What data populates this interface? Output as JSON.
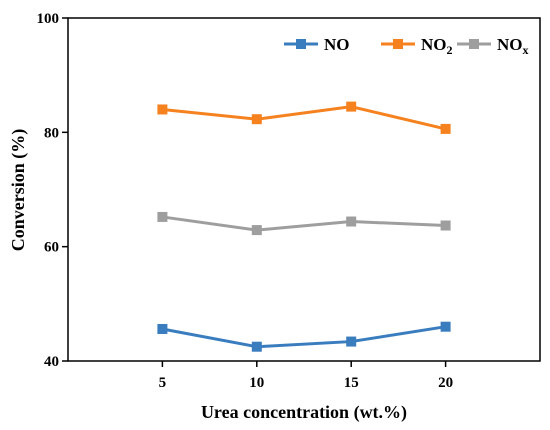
{
  "chart_data": {
    "type": "line",
    "xlabel": "Urea concentration (wt.%)",
    "ylabel": "Conversion (%)",
    "x": [
      5,
      10,
      15,
      20
    ],
    "xlim": [
      0,
      25
    ],
    "ylim": [
      40,
      100
    ],
    "xticks": [
      "5",
      "10",
      "15",
      "20"
    ],
    "yticks": [
      "40",
      "60",
      "80",
      "100"
    ],
    "legend_position": "top-right",
    "grid": false,
    "series": [
      {
        "name": "NO",
        "name_sub": "",
        "color": "#3a7dbf",
        "values": [
          45.6,
          42.5,
          43.4,
          46.0
        ]
      },
      {
        "name": "NO",
        "name_sub": "2",
        "color": "#f5821f",
        "values": [
          84.0,
          82.3,
          84.5,
          80.6
        ]
      },
      {
        "name": "NO",
        "name_sub": "x",
        "color": "#9e9e9e",
        "values": [
          65.2,
          62.9,
          64.4,
          63.7
        ]
      }
    ]
  }
}
